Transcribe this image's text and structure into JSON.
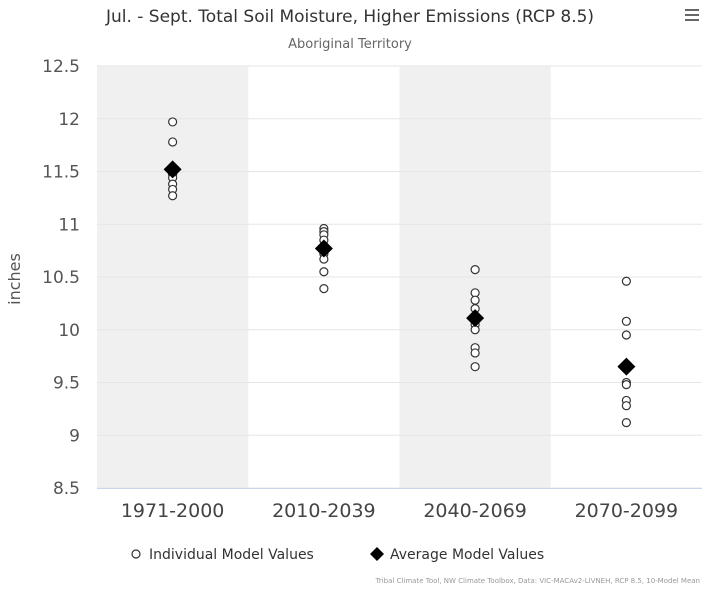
{
  "chart_data": {
    "type": "scatter",
    "title": "Jul. - Sept. Total Soil Moisture, Higher Emissions (RCP 8.5)",
    "subtitle": "Aboriginal Territory",
    "ylabel": "inches",
    "xlabel": "",
    "ylim": [
      8.5,
      12.5
    ],
    "yticks": [
      "12.5",
      "12",
      "11.5",
      "11",
      "10.5",
      "10",
      "9.5",
      "9",
      "8.5"
    ],
    "categories": [
      "1971-2000",
      "2010-2039",
      "2040-2069",
      "2070-2099"
    ],
    "series": [
      {
        "name": "Individual Model Values",
        "marker": "open-circle",
        "color": "#333333",
        "values": [
          [
            11.97,
            11.78,
            11.52,
            11.47,
            11.44,
            11.38,
            11.33,
            11.27
          ],
          [
            10.96,
            10.93,
            10.9,
            10.85,
            10.79,
            10.72,
            10.67,
            10.55,
            10.39
          ],
          [
            10.57,
            10.35,
            10.28,
            10.2,
            10.12,
            10.05,
            10.0,
            9.83,
            9.78,
            9.65
          ],
          [
            10.46,
            10.08,
            9.95,
            9.65,
            9.5,
            9.48,
            9.33,
            9.28,
            9.12
          ]
        ]
      },
      {
        "name": "Average Model Values",
        "marker": "diamond",
        "color": "#000000",
        "values": [
          11.52,
          10.77,
          10.11,
          9.65
        ]
      }
    ],
    "band_color": "#f0f0f0",
    "grid": true,
    "legend_position": "bottom-center"
  },
  "credits": "Tribal Climate Tool, NW Climate Toolbox, Data: VIC-MACAv2-LIVNEH, RCP 8.5, 10-Model Mean",
  "menu_icon": "hamburger-menu-icon"
}
